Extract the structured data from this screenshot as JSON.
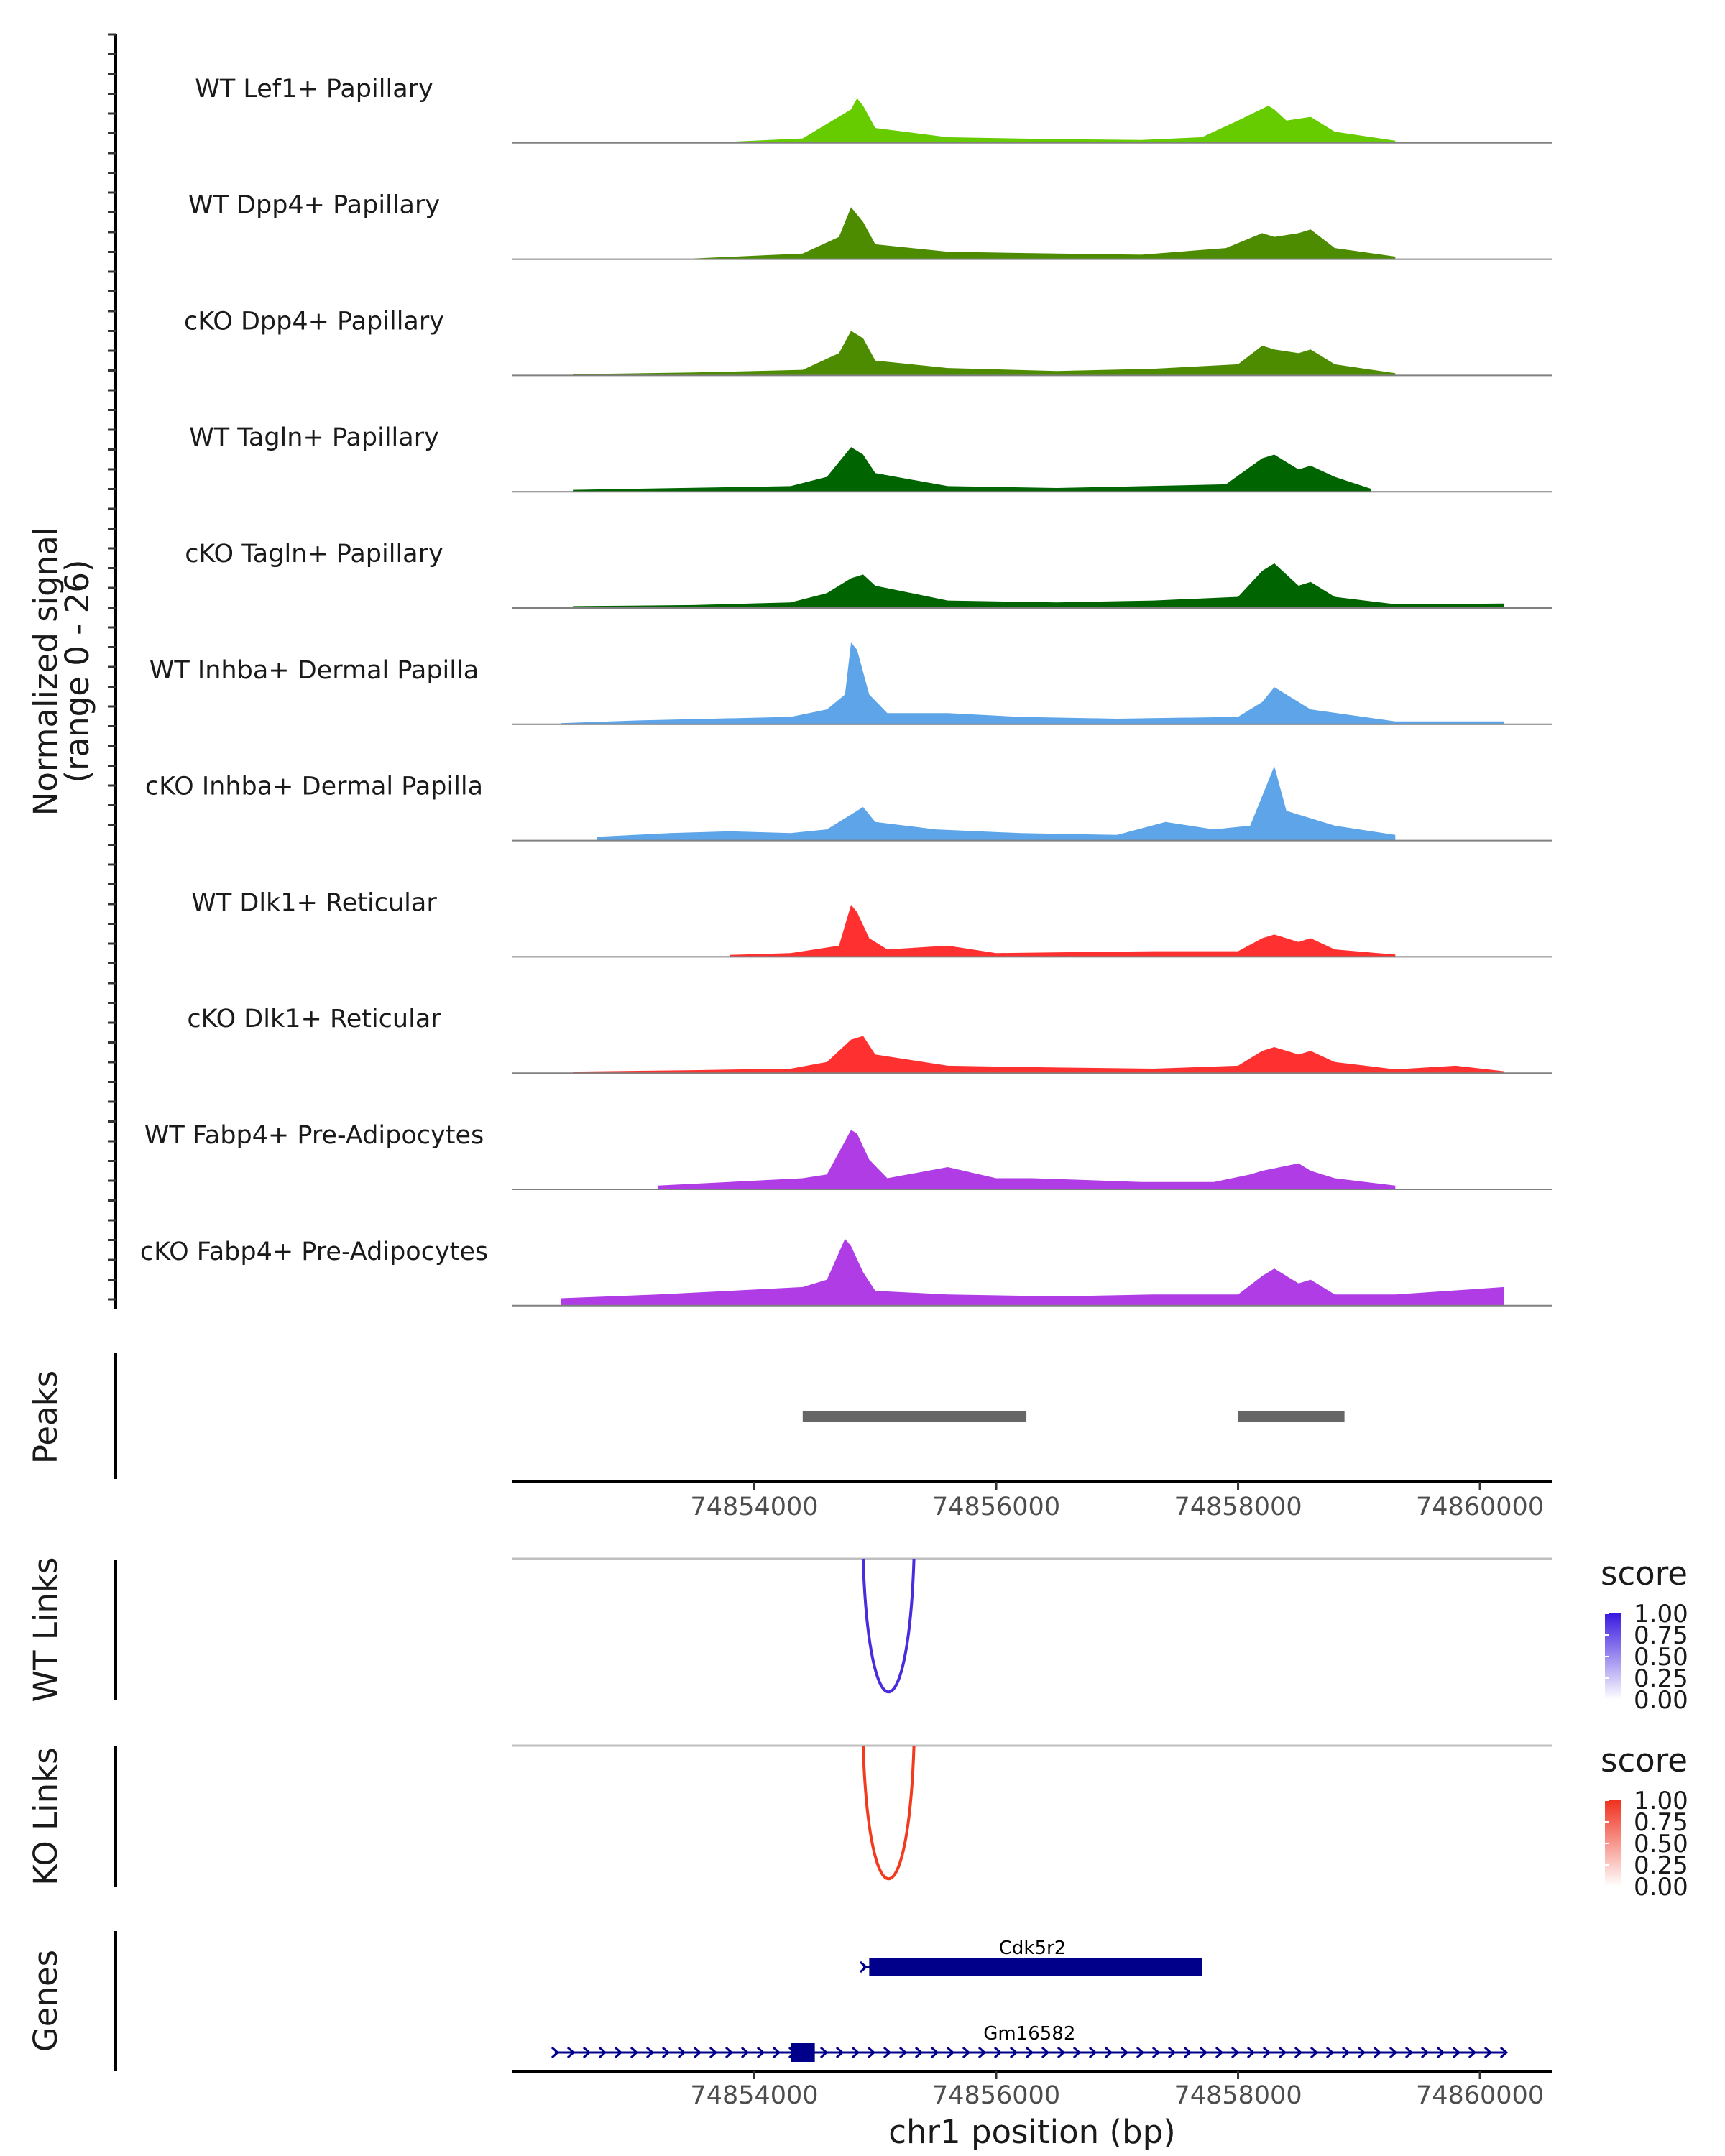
{
  "chart_data": {
    "type": "area",
    "region": "chr1",
    "xlim": [
      74852000,
      74860600
    ],
    "coverage": {
      "ylabel": "Normalized signal",
      "ylabel_range": "(range 0 - 26)",
      "ylim": [
        0,
        26
      ],
      "tracks": [
        {
          "name": "WT Lef1+ Papillary",
          "color": "#66CC00",
          "x": [
            74853800,
            74854400,
            74854800,
            74854850,
            74854900,
            74855000,
            74855600,
            74856500,
            74857200,
            74857700,
            74858000,
            74858250,
            74858300,
            74858400,
            74858600,
            74858800,
            74859300
          ],
          "y": [
            0.3,
            1.2,
            9,
            12,
            10,
            4,
            1.5,
            1.0,
            0.8,
            1.5,
            6,
            10,
            9,
            6,
            7,
            3,
            0.6
          ]
        },
        {
          "name": "WT Dpp4+ Papillary",
          "color": "#4D8C00",
          "x": [
            74853500,
            74854400,
            74854700,
            74854800,
            74854900,
            74855000,
            74855600,
            74856500,
            74857200,
            74857900,
            74858200,
            74858300,
            74858500,
            74858600,
            74858800,
            74859300
          ],
          "y": [
            0.2,
            1.5,
            6,
            14,
            10,
            4,
            2,
            1.5,
            1.2,
            3,
            7,
            6,
            7,
            8,
            3,
            0.7
          ]
        },
        {
          "name": "cKO Dpp4+ Papillary",
          "color": "#4D8C00",
          "x": [
            74852500,
            74853500,
            74854400,
            74854700,
            74854800,
            74854900,
            74855000,
            74855600,
            74856500,
            74857300,
            74858000,
            74858200,
            74858300,
            74858500,
            74858600,
            74858800,
            74859300
          ],
          "y": [
            0.3,
            0.8,
            1.5,
            6,
            12,
            10,
            4,
            2,
            1.2,
            1.8,
            3,
            8,
            7,
            6,
            7,
            3,
            0.6
          ]
        },
        {
          "name": "WT Tagln+ Papillary",
          "color": "#006400",
          "x": [
            74852500,
            74854300,
            74854600,
            74854800,
            74854900,
            74855000,
            74855600,
            74856500,
            74857900,
            74858200,
            74858300,
            74858500,
            74858600,
            74858800,
            74859100
          ],
          "y": [
            0.5,
            1.5,
            4,
            12,
            10,
            5,
            1.5,
            1.0,
            2,
            9,
            10,
            6,
            7,
            4,
            0.8
          ]
        },
        {
          "name": "cKO Tagln+ Papillary",
          "color": "#006400",
          "x": [
            74852500,
            74853500,
            74854300,
            74854600,
            74854800,
            74854900,
            74855000,
            74855600,
            74856500,
            74857300,
            74858000,
            74858200,
            74858300,
            74858500,
            74858600,
            74858800,
            74859300,
            74860200
          ],
          "y": [
            0.5,
            0.8,
            1.5,
            4,
            8,
            9,
            6,
            2,
            1.5,
            2,
            3,
            10,
            12,
            6,
            7,
            3,
            1.0,
            1.2
          ]
        },
        {
          "name": "WT Inhba+ Dermal Papilla",
          "color": "#5DA5E8",
          "x": [
            74852400,
            74853000,
            74854300,
            74854600,
            74854750,
            74854800,
            74854850,
            74854950,
            74855100,
            74855600,
            74856200,
            74857000,
            74858000,
            74858200,
            74858300,
            74858600,
            74859300,
            74860200
          ],
          "y": [
            0.3,
            1.0,
            2,
            4,
            8,
            22,
            20,
            8,
            3,
            3,
            2,
            1.5,
            2,
            6,
            10,
            4,
            0.8,
            0.8
          ]
        },
        {
          "name": "cKO Inhba+ Dermal Papilla",
          "color": "#5DA5E8",
          "x": [
            74852700,
            74853300,
            74853800,
            74854300,
            74854600,
            74854800,
            74854900,
            74855000,
            74855500,
            74856200,
            74857000,
            74857400,
            74857800,
            74858100,
            74858250,
            74858300,
            74858400,
            74858800,
            74859300
          ],
          "y": [
            1.0,
            2,
            2.5,
            2,
            3,
            7,
            9,
            5,
            3,
            2,
            1.5,
            5,
            3,
            4,
            16,
            20,
            8,
            4,
            1.5
          ]
        },
        {
          "name": "WT Dlk1+ Reticular",
          "color": "#FF3030",
          "x": [
            74853800,
            74854300,
            74854700,
            74854800,
            74854850,
            74854950,
            74855100,
            74855600,
            74856000,
            74857300,
            74858000,
            74858200,
            74858300,
            74858500,
            74858600,
            74858800,
            74859300
          ],
          "y": [
            0.5,
            1.0,
            3,
            14,
            12,
            5,
            2,
            3,
            1.0,
            1.5,
            1.5,
            5,
            6,
            4,
            5,
            2,
            0.6
          ]
        },
        {
          "name": "cKO Dlk1+ Reticular",
          "color": "#FF3030",
          "x": [
            74852500,
            74853500,
            74854300,
            74854600,
            74854800,
            74854900,
            74855000,
            74855600,
            74856500,
            74857300,
            74858000,
            74858200,
            74858300,
            74858500,
            74858600,
            74858800,
            74859300,
            74859800,
            74860200
          ],
          "y": [
            0.4,
            0.8,
            1.2,
            3,
            9,
            10,
            5,
            2,
            1.5,
            1.2,
            2,
            6,
            7,
            5,
            6,
            3,
            1.0,
            2,
            0.5
          ]
        },
        {
          "name": "WT Fabp4+ Pre-Adipocytes",
          "color": "#B03CE6",
          "x": [
            74853200,
            74854400,
            74854600,
            74854800,
            74854850,
            74854950,
            74855100,
            74855600,
            74856000,
            74856300,
            74857200,
            74857800,
            74858100,
            74858200,
            74858500,
            74858600,
            74858800,
            74859300
          ],
          "y": [
            1.0,
            3,
            4,
            16,
            15,
            8,
            3,
            6,
            3,
            3,
            2,
            2,
            4,
            5,
            7,
            5,
            3,
            1.0
          ]
        },
        {
          "name": "cKO Fabp4+ Pre-Adipocytes",
          "color": "#B03CE6",
          "x": [
            74852400,
            74853200,
            74853800,
            74854400,
            74854600,
            74854750,
            74854800,
            74854900,
            74855000,
            74855600,
            74856500,
            74857300,
            74858000,
            74858200,
            74858300,
            74858500,
            74858600,
            74858800,
            74859300,
            74860200
          ],
          "y": [
            2,
            3,
            4,
            5,
            7,
            18,
            16,
            9,
            4,
            3,
            2.5,
            3,
            3,
            8,
            10,
            6,
            7,
            3,
            3,
            5
          ]
        }
      ]
    },
    "peaks": {
      "label": "Peaks",
      "color": "#666666",
      "ranges": [
        [
          74854400,
          74856250
        ],
        [
          74858000,
          74858880
        ]
      ]
    },
    "x_axis_ticks": [
      74854000,
      74856000,
      74858000,
      74860000
    ],
    "tick_labels": [
      "74854000",
      "74856000",
      "74858000",
      "74860000"
    ],
    "links": [
      {
        "label": "WT Links",
        "start": 74854900,
        "end": 74855320,
        "score": 1.0,
        "color": "#4B2BDB",
        "legend_color": "#3A1AE0"
      },
      {
        "label": "KO Links",
        "start": 74854900,
        "end": 74855320,
        "score": 1.0,
        "color": "#F23B1E",
        "legend_color": "#F0311F"
      }
    ],
    "legend": {
      "title": "score",
      "ticks": [
        "1.00",
        "0.75",
        "0.50",
        "0.25",
        "0.00"
      ]
    },
    "genes": {
      "label": "Genes",
      "color": "#00008B",
      "items": [
        {
          "name": "Cdk5r2",
          "start": 74854900,
          "end": 74857700,
          "strand": "+",
          "exon_blocks": [
            [
              74854950,
              74857700
            ]
          ]
        },
        {
          "name": "Gm16582",
          "start": 74852350,
          "end": 74860200,
          "strand": "+",
          "exon_blocks": [
            [
              74854300,
              74854500
            ]
          ]
        }
      ]
    },
    "xlabel": "chr1 position (bp)"
  }
}
